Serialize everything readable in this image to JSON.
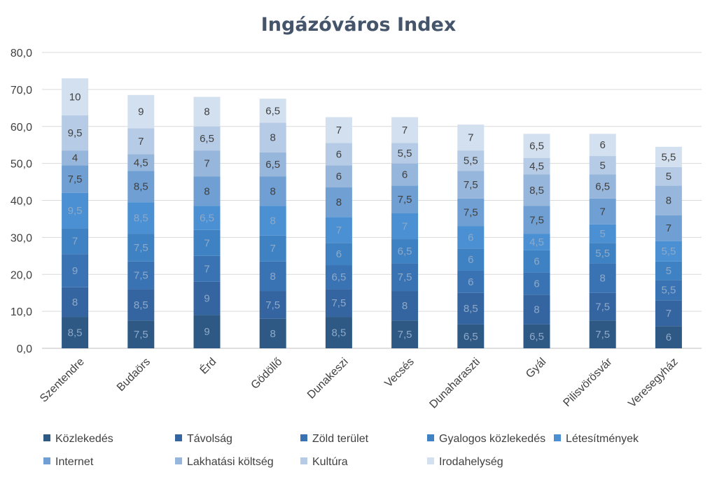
{
  "chart_data": {
    "type": "bar",
    "stacked": true,
    "title": "Ingázóváros Index",
    "xlabel": "",
    "ylabel": "",
    "ylim": [
      0,
      80
    ],
    "y_ticks": [
      "0,0",
      "10,0",
      "20,0",
      "30,0",
      "40,0",
      "50,0",
      "60,0",
      "70,0",
      "80,0"
    ],
    "grid": true,
    "legend_position": "bottom",
    "categories": [
      "Szentendre",
      "Budaörs",
      "Érd",
      "Gödöllő",
      "Dunakeszi",
      "Vecsés",
      "Dunaharaszti",
      "Gyál",
      "Pilisvörösvár",
      "Veresegyház"
    ],
    "series": [
      {
        "name": "Közlekedés",
        "color": "#2e5985",
        "values": [
          8.5,
          7.5,
          9,
          8,
          8.5,
          7.5,
          6.5,
          6.5,
          7.5,
          6
        ]
      },
      {
        "name": "Távolság",
        "color": "#3565a0",
        "values": [
          8,
          8.5,
          9,
          7.5,
          7.5,
          8,
          8.5,
          8,
          7.5,
          7
        ]
      },
      {
        "name": "Zöld terület",
        "color": "#3973b3",
        "values": [
          9,
          7.5,
          7,
          8,
          6.5,
          7.5,
          6,
          6,
          8,
          5.5
        ]
      },
      {
        "name": "Gyalogos közlekedés",
        "color": "#3f82c3",
        "values": [
          7,
          7.5,
          7,
          7,
          6,
          6.5,
          6,
          6,
          5.5,
          5
        ]
      },
      {
        "name": "Létesítmények",
        "color": "#4a90d3",
        "values": [
          9.5,
          8.5,
          6.5,
          8,
          7,
          7,
          6,
          4.5,
          5,
          5.5
        ]
      },
      {
        "name": "Internet",
        "color": "#6f9fd3",
        "values": [
          7.5,
          8.5,
          8,
          8,
          8,
          7.5,
          7.5,
          7.5,
          7,
          7
        ]
      },
      {
        "name": "Lakhatási költség",
        "color": "#97b6db",
        "values": [
          4,
          4.5,
          7,
          6.5,
          6,
          6,
          7.5,
          8.5,
          6.5,
          8
        ]
      },
      {
        "name": "Kultúra",
        "color": "#b6cbe6",
        "values": [
          9.5,
          7,
          6.5,
          8,
          6,
          5.5,
          5.5,
          4.5,
          5,
          5
        ]
      },
      {
        "name": "Irodahelység",
        "color": "#d3e0f0",
        "values": [
          10,
          9,
          8,
          6.5,
          7,
          7,
          7,
          6.5,
          6,
          5.5
        ]
      }
    ]
  }
}
